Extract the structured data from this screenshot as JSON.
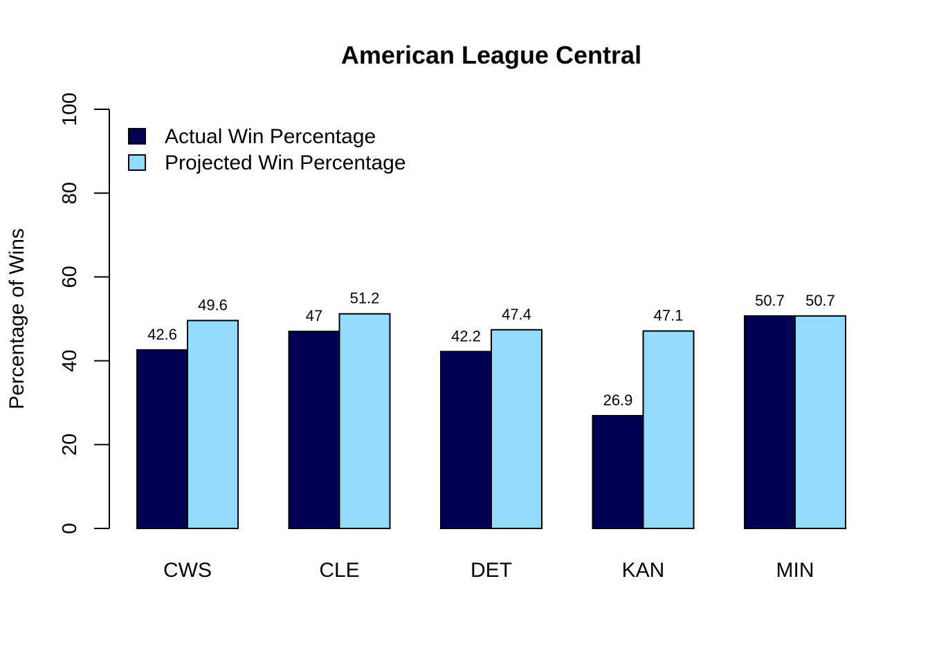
{
  "chart_data": {
    "type": "bar",
    "title": "American League Central",
    "xlabel": "",
    "ylabel": "Percentage of Wins",
    "ylim": [
      0,
      100
    ],
    "yticks": [
      0,
      20,
      40,
      60,
      80,
      100
    ],
    "categories": [
      "CWS",
      "CLE",
      "DET",
      "KAN",
      "MIN"
    ],
    "series": [
      {
        "name": "Actual Win Percentage",
        "color": "#000055",
        "values": [
          42.6,
          47,
          42.2,
          26.9,
          50.7
        ]
      },
      {
        "name": "Projected Win Percentage",
        "color": "#93DAFF",
        "values": [
          49.6,
          51.2,
          47.4,
          47.1,
          50.7
        ]
      }
    ],
    "legend_position": "top-left",
    "grid": false
  }
}
